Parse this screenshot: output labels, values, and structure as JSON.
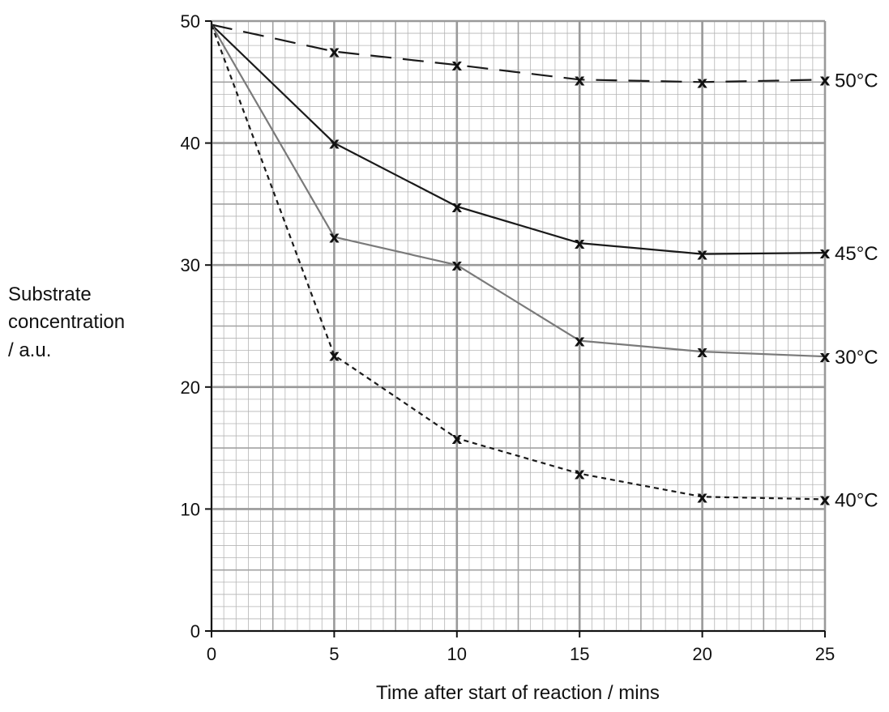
{
  "chart_data": {
    "type": "line",
    "title": "",
    "xlabel": "Time after start of reaction / mins",
    "ylabel_lines": [
      "Substrate",
      "concentration",
      "/ a.u."
    ],
    "xlim": [
      0,
      25
    ],
    "ylim": [
      0,
      50
    ],
    "x_ticks": [
      0,
      5,
      10,
      15,
      20,
      25
    ],
    "y_ticks": [
      0,
      10,
      20,
      30,
      40,
      50
    ],
    "grid": true,
    "marker_symbol": "x",
    "series": [
      {
        "name": "50°C",
        "color": "#1a1a1a",
        "dash": "long-dash",
        "x": [
          0,
          5,
          10,
          15,
          20,
          25
        ],
        "y": [
          49.7,
          47.5,
          46.4,
          45.2,
          45.0,
          45.2
        ]
      },
      {
        "name": "45°C",
        "color": "#1a1a1a",
        "dash": "solid",
        "x": [
          0,
          5,
          10,
          15,
          20,
          25
        ],
        "y": [
          49.7,
          40.0,
          34.8,
          31.8,
          30.9,
          31.0
        ]
      },
      {
        "name": "30°C",
        "color": "#7a7a7a",
        "dash": "solid",
        "x": [
          0,
          5,
          10,
          15,
          20,
          25
        ],
        "y": [
          49.7,
          32.3,
          30.0,
          23.8,
          22.9,
          22.5
        ]
      },
      {
        "name": "40°C",
        "color": "#1a1a1a",
        "dash": "short-dash",
        "x": [
          0,
          5,
          10,
          15,
          20,
          25
        ],
        "y": [
          49.7,
          22.6,
          15.8,
          12.9,
          11.0,
          10.8
        ]
      }
    ]
  }
}
